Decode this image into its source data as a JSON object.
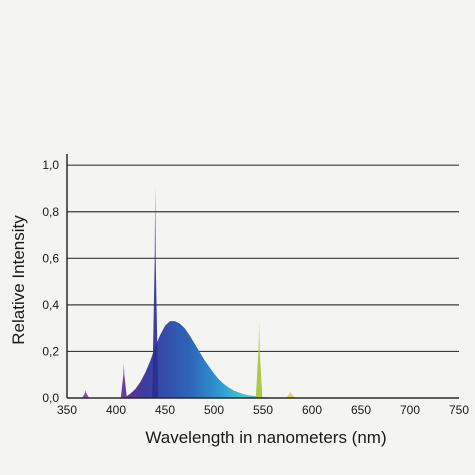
{
  "chart_data": {
    "type": "area",
    "title": "",
    "xlabel": "Wavelength in nanometers (nm)",
    "ylabel": "Relative Intensity",
    "xlim": [
      350,
      750
    ],
    "ylim": [
      0,
      1.0
    ],
    "x_ticks": [
      350,
      400,
      450,
      500,
      550,
      600,
      650,
      700,
      750
    ],
    "x_tick_labels": [
      "350",
      "400",
      "450",
      "500",
      "550",
      "600",
      "650",
      "700",
      "750"
    ],
    "y_ticks": [
      0.0,
      0.2,
      0.4,
      0.6,
      0.8,
      1.0
    ],
    "y_tick_labels": [
      "0,0",
      "0,2",
      "0,4",
      "0,6",
      "0,8",
      "1,0"
    ],
    "grid": "horizontal",
    "legend": "none",
    "series": [
      {
        "x": [
          405,
          410,
          415,
          420,
          425,
          430,
          435,
          440,
          445,
          450,
          455,
          460,
          465,
          470,
          475,
          480,
          485,
          490,
          495,
          500,
          505,
          510,
          515,
          520,
          525,
          530,
          535,
          540,
          545,
          550,
          560,
          570,
          580,
          600,
          620
        ],
        "y": [
          0.0,
          0.005,
          0.02,
          0.04,
          0.07,
          0.11,
          0.16,
          0.22,
          0.27,
          0.31,
          0.33,
          0.33,
          0.32,
          0.3,
          0.27,
          0.235,
          0.2,
          0.165,
          0.135,
          0.105,
          0.08,
          0.06,
          0.045,
          0.033,
          0.024,
          0.017,
          0.012,
          0.009,
          0.006,
          0.004,
          0.002,
          0.001,
          0.0005,
          0.0002,
          0.0
        ]
      }
    ],
    "peaks": [
      {
        "x": 369,
        "y": 0.035
      },
      {
        "x": 408,
        "y": 0.15
      },
      {
        "x": 440,
        "y": 0.91
      },
      {
        "x": 546,
        "y": 0.33
      },
      {
        "x": 578,
        "y": 0.03
      }
    ],
    "colors": {
      "background": "#f4f4f3",
      "gridline": "#3b3b3b",
      "axis": "#2a2a2a",
      "text": "#1a1a1a"
    }
  }
}
